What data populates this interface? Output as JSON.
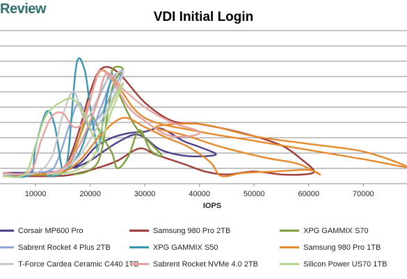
{
  "logo": {
    "text": "Review"
  },
  "chart_data": {
    "type": "line",
    "title": "VDI Initial Login",
    "xlabel": "IOPS",
    "ylabel": "",
    "xlim": [
      4000,
      78000
    ],
    "ylim": [
      0,
      10
    ],
    "x_ticks": [
      "10000",
      "20000",
      "30000",
      "40000",
      "50000",
      "60000",
      "70000"
    ],
    "x_tick_values": [
      10000,
      20000,
      30000,
      40000,
      50000,
      60000,
      70000
    ],
    "y_grid": [
      1,
      2,
      3,
      4,
      5,
      6,
      7,
      8,
      9,
      10
    ],
    "grid": true,
    "legend_position": "bottom",
    "series": [
      {
        "name": "Corsair MP600 Pro",
        "color": "#4e3f8a",
        "points": [
          [
            4000,
            0.7
          ],
          [
            14000,
            0.8
          ],
          [
            18000,
            1.3
          ],
          [
            21000,
            2.4
          ],
          [
            24000,
            3.0
          ],
          [
            27000,
            3.3
          ],
          [
            30000,
            3.4
          ],
          [
            33000,
            3.6
          ],
          [
            37000,
            2.8
          ],
          [
            40000,
            2.4
          ],
          [
            43000,
            1.9
          ],
          [
            38000,
            1.8
          ],
          [
            33000,
            2.2
          ],
          [
            30000,
            3.0
          ],
          [
            28000,
            3.2
          ],
          [
            25000,
            2.7
          ],
          [
            22000,
            2.0
          ],
          [
            20000,
            1.5
          ],
          [
            17000,
            1.0
          ]
        ]
      },
      {
        "name": "Samsung 980 Pro 2TB",
        "color": "#9e3a3a",
        "points": [
          [
            4000,
            0.5
          ],
          [
            14000,
            0.5
          ],
          [
            18000,
            0.7
          ],
          [
            22000,
            1.1
          ],
          [
            25000,
            1.5
          ],
          [
            29000,
            2.3
          ],
          [
            32000,
            1.9
          ],
          [
            37000,
            1.3
          ],
          [
            41000,
            0.8
          ],
          [
            45000,
            0.6
          ],
          [
            50000,
            0.8
          ],
          [
            55000,
            0.6
          ],
          [
            59000,
            0.6
          ],
          [
            61000,
            0.8
          ],
          [
            59000,
            1.5
          ],
          [
            55000,
            2.5
          ],
          [
            48000,
            3.3
          ],
          [
            40000,
            3.9
          ],
          [
            35000,
            4.1
          ],
          [
            30000,
            5.3
          ],
          [
            25000,
            7.3
          ],
          [
            22000,
            7.5
          ],
          [
            20000,
            6.0
          ],
          [
            18000,
            3.5
          ],
          [
            16000,
            1.5
          ],
          [
            14000,
            0.6
          ]
        ]
      },
      {
        "name": "XPG GAMMIX S70",
        "color": "#7f9f3f",
        "points": [
          [
            4000,
            0.6
          ],
          [
            14000,
            0.6
          ],
          [
            16000,
            1.2
          ],
          [
            18000,
            3.0
          ],
          [
            20000,
            4.5
          ],
          [
            22000,
            3.2
          ],
          [
            24000,
            2.0
          ],
          [
            25000,
            1.0
          ],
          [
            27000,
            1.8
          ],
          [
            29000,
            3.5
          ],
          [
            31000,
            2.2
          ],
          [
            33000,
            1.9
          ],
          [
            28000,
            3.9
          ],
          [
            24000,
            7.2
          ],
          [
            26000,
            7.5
          ],
          [
            24000,
            6.2
          ],
          [
            22000,
            2.0
          ],
          [
            20000,
            0.9
          ],
          [
            17000,
            0.6
          ]
        ]
      },
      {
        "name": "Sabrent Rocket 4 Plus 2TB",
        "color": "#8fa8d3",
        "points": [
          [
            4000,
            0.6
          ],
          [
            12000,
            0.8
          ],
          [
            14000,
            1.5
          ],
          [
            16000,
            3.6
          ],
          [
            18000,
            5.3
          ],
          [
            20000,
            3.5
          ],
          [
            22000,
            5.0
          ],
          [
            24000,
            6.8
          ],
          [
            26000,
            7.4
          ],
          [
            24000,
            6.0
          ],
          [
            22000,
            4.5
          ],
          [
            20000,
            3.8
          ],
          [
            18000,
            2.5
          ],
          [
            16000,
            1.2
          ],
          [
            13000,
            0.7
          ]
        ]
      },
      {
        "name": "XPG GAMMIX S50",
        "color": "#3996b0",
        "points": [
          [
            4000,
            0.5
          ],
          [
            9000,
            0.6
          ],
          [
            10000,
            2.4
          ],
          [
            12000,
            4.7
          ],
          [
            13500,
            3.8
          ],
          [
            15000,
            0.8
          ],
          [
            16000,
            2.0
          ],
          [
            17500,
            7.8
          ],
          [
            19000,
            7.4
          ],
          [
            20000,
            5.0
          ],
          [
            21000,
            2.9
          ],
          [
            21500,
            2.3
          ],
          [
            23000,
            5.6
          ],
          [
            24000,
            7.2
          ],
          [
            22000,
            6.0
          ],
          [
            20000,
            4.0
          ],
          [
            18000,
            2.0
          ],
          [
            15000,
            0.7
          ],
          [
            12000,
            0.5
          ]
        ]
      },
      {
        "name": "Samsung 980 Pro 1TB",
        "color": "#e68a2e",
        "points": [
          [
            4000,
            0.6
          ],
          [
            14000,
            0.7
          ],
          [
            18000,
            1.5
          ],
          [
            22000,
            3.2
          ],
          [
            26000,
            4.3
          ],
          [
            30000,
            3.7
          ],
          [
            34000,
            3.0
          ],
          [
            38000,
            2.4
          ],
          [
            42000,
            1.4
          ],
          [
            44000,
            0.5
          ],
          [
            48000,
            0.7
          ],
          [
            54000,
            0.8
          ],
          [
            60000,
            0.9
          ],
          [
            62000,
            0.6
          ],
          [
            58000,
            1.3
          ],
          [
            52000,
            1.7
          ],
          [
            44000,
            2.4
          ],
          [
            38000,
            3.1
          ],
          [
            32000,
            3.7
          ],
          [
            40000,
            3.9
          ],
          [
            50000,
            3.1
          ],
          [
            60000,
            2.6
          ],
          [
            70000,
            2.1
          ],
          [
            78000,
            1.1
          ],
          [
            70000,
            1.6
          ],
          [
            60000,
            2.2
          ],
          [
            50000,
            2.8
          ],
          [
            40000,
            3.4
          ],
          [
            30000,
            4.3
          ],
          [
            25000,
            6.4
          ],
          [
            22000,
            7.4
          ],
          [
            20000,
            5.5
          ],
          [
            18000,
            3.0
          ],
          [
            16000,
            1.2
          ],
          [
            13000,
            0.6
          ]
        ]
      },
      {
        "name": "T-Force Cardea Ceramic C440 1TB",
        "color": "#c9c9c9",
        "points": [
          [
            4000,
            0.6
          ],
          [
            10000,
            0.7
          ],
          [
            13000,
            1.8
          ],
          [
            15000,
            4.5
          ],
          [
            17000,
            6.0
          ],
          [
            19000,
            4.2
          ],
          [
            21000,
            5.3
          ],
          [
            23000,
            6.7
          ],
          [
            26000,
            7.3
          ],
          [
            24000,
            5.5
          ],
          [
            21000,
            3.5
          ],
          [
            18000,
            1.8
          ],
          [
            15000,
            0.9
          ],
          [
            12000,
            0.6
          ]
        ]
      },
      {
        "name": "Sabrent Rocket NVMe 4.0 2TB",
        "color": "#e8a1a1",
        "points": [
          [
            4000,
            0.7
          ],
          [
            9000,
            0.8
          ],
          [
            11000,
            2.8
          ],
          [
            13000,
            4.4
          ],
          [
            15000,
            4.6
          ],
          [
            17000,
            3.7
          ],
          [
            19000,
            4.2
          ],
          [
            21000,
            6.8
          ],
          [
            22000,
            7.4
          ],
          [
            24000,
            6.8
          ],
          [
            27000,
            5.0
          ],
          [
            30000,
            4.1
          ],
          [
            34000,
            3.2
          ],
          [
            38000,
            3.1
          ],
          [
            40000,
            3.4
          ],
          [
            35000,
            4.0
          ],
          [
            30000,
            5.0
          ],
          [
            26000,
            6.2
          ],
          [
            23000,
            7.2
          ],
          [
            21000,
            5.0
          ],
          [
            18000,
            2.5
          ],
          [
            15000,
            1.0
          ],
          [
            12000,
            0.7
          ]
        ]
      },
      {
        "name": "Silicon Power US70 1TB",
        "color": "#b7d48f",
        "points": [
          [
            4000,
            0.5
          ],
          [
            8000,
            0.6
          ],
          [
            10000,
            2.5
          ],
          [
            12000,
            4.5
          ],
          [
            15000,
            5.4
          ],
          [
            17000,
            5.5
          ],
          [
            19000,
            4.5
          ],
          [
            21000,
            3.0
          ],
          [
            23000,
            4.5
          ],
          [
            25000,
            6.0
          ],
          [
            26000,
            6.5
          ],
          [
            24000,
            4.8
          ],
          [
            22000,
            2.8
          ],
          [
            20000,
            1.5
          ],
          [
            17000,
            0.8
          ],
          [
            13000,
            0.6
          ]
        ]
      }
    ]
  }
}
